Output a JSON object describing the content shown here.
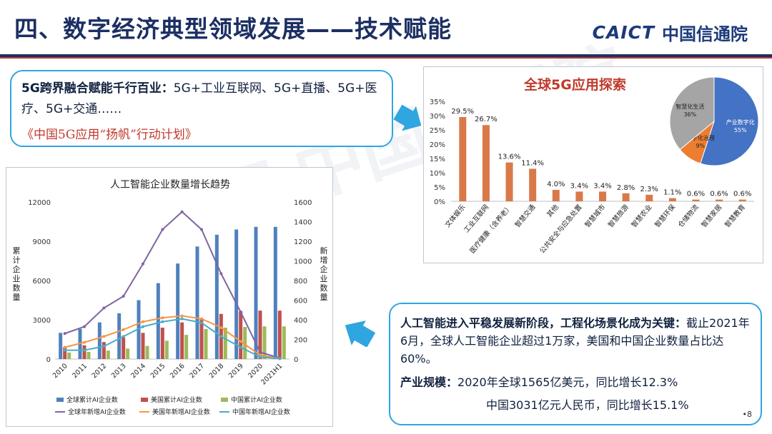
{
  "header": {
    "title": "四、数字经济典型领域发展——技术赋能",
    "logo_mark": "CAICT",
    "logo_name": "中国信通院"
  },
  "watermark": "CAICT 中国信通院",
  "intro": {
    "headline": "5G跨界融合赋能千行百业：",
    "body": "5G+工业互联网、5G+直播、5G+医疗、5G+交通……",
    "plan": "《中国5G应用“扬帆”行动计划》"
  },
  "summary": {
    "headline": "人工智能进入平稳发展新阶段，工程化场景化成为关键：",
    "body": "截止2021年6月，全球人工智能企业超过1万家，美国和中国企业数量占比达60%。",
    "scale_label": "产业规模：",
    "scale_global": "2020年全球1565亿美元，同比增长12.3%",
    "scale_china": "中国3031亿元人民币，同比增长15.1%"
  },
  "page_number": "•8",
  "colors": {
    "primary": "#1c2f63",
    "accent_red": "#c0392b",
    "box_border": "#2fa6e0",
    "bar_orange": "#d9794a",
    "pie_blue": "#4472c4",
    "pie_orange": "#ed7d31",
    "pie_gray": "#a5a5a5",
    "s_global_total": "#4f81bd",
    "s_us_total": "#c0504d",
    "s_cn_total": "#9bbb59",
    "s_global_new": "#8064a2",
    "s_us_new": "#f79646",
    "s_cn_new": "#4bacc6"
  },
  "chart_data": [
    {
      "type": "bar",
      "title": "全球5G应用探索",
      "categories": [
        "文体娱乐",
        "工业互联网",
        "医疗健康（含养老）",
        "智慧交通",
        "其他",
        "公共安全与应急处置",
        "智慧城市",
        "智慧旅游",
        "智慧农业",
        "智慧环保",
        "仓储物流",
        "智慧家居",
        "智慧教育"
      ],
      "values": [
        29.5,
        26.7,
        13.6,
        11.4,
        4.0,
        3.4,
        3.4,
        2.8,
        2.3,
        1.1,
        0.6,
        0.6,
        0.6
      ],
      "value_labels": [
        "29.5%",
        "26.7%",
        "13.6%",
        "11.4%",
        "4.0%",
        "3.4%",
        "3.4%",
        "2.8%",
        "2.3%",
        "1.1%",
        "0.6%",
        "0.6%",
        "0.6%"
      ],
      "y_ticks": [
        "0%",
        "5%",
        "10%",
        "15%",
        "20%",
        "25%",
        "30%",
        "35%"
      ],
      "ylim": [
        0,
        35
      ],
      "ylabel": "",
      "xlabel": ""
    },
    {
      "type": "pie",
      "labels": [
        "产业数字化",
        "数字化治理",
        "智慧化生活"
      ],
      "values": [
        55,
        9,
        36
      ],
      "value_labels": [
        "55%",
        "9%",
        "36%"
      ]
    },
    {
      "type": "bar+line",
      "title": "人工智能企业数量增长趋势",
      "categories": [
        "2010",
        "2011",
        "2012",
        "2013",
        "2014",
        "2015",
        "2016",
        "2017",
        "2018",
        "2019",
        "2020",
        "2021H1"
      ],
      "ylabel_left": "累计企业数量",
      "ylabel_right": "新增企业数量",
      "ylim_left": [
        0,
        12000
      ],
      "ylim_right": [
        0,
        1600
      ],
      "y_ticks_left": [
        "0",
        "3000",
        "6000",
        "9000",
        "12000"
      ],
      "y_ticks_right": [
        "0",
        "200",
        "400",
        "600",
        "800",
        "1000",
        "1200",
        "1400",
        "1600"
      ],
      "bar_series": [
        {
          "name": "全球累计AI企业数",
          "values": [
            2000,
            2300,
            2800,
            3500,
            4500,
            5800,
            7300,
            8600,
            9500,
            9900,
            10100,
            10100
          ]
        },
        {
          "name": "美国累计AI企业数",
          "values": [
            900,
            1050,
            1300,
            1650,
            2000,
            2400,
            2800,
            3100,
            3450,
            3650,
            3700,
            3700
          ]
        },
        {
          "name": "中国累计AI企业数",
          "values": [
            500,
            550,
            650,
            800,
            1000,
            1400,
            1850,
            2300,
            2400,
            2450,
            2500,
            2500
          ]
        }
      ],
      "line_series": [
        {
          "name": "全球年新增AI企业数",
          "values": [
            260,
            330,
            520,
            640,
            970,
            1320,
            1500,
            1320,
            870,
            480,
            70,
            10
          ]
        },
        {
          "name": "美国年新增AI企业数",
          "values": [
            120,
            170,
            230,
            300,
            380,
            420,
            440,
            410,
            320,
            180,
            40,
            5
          ]
        },
        {
          "name": "中国年新增AI企业数",
          "values": [
            90,
            90,
            130,
            230,
            330,
            380,
            410,
            370,
            230,
            120,
            20,
            5
          ]
        }
      ]
    }
  ]
}
